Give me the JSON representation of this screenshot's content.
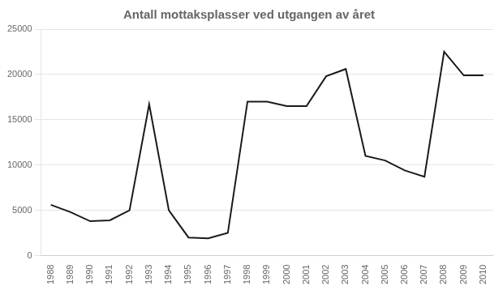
{
  "chart_data": {
    "type": "line",
    "title": "Antall mottaksplasser ved utgangen av året",
    "x": [
      1988,
      1989,
      1990,
      1991,
      1992,
      1993,
      1994,
      1995,
      1996,
      1997,
      1998,
      1999,
      2000,
      2001,
      2002,
      2003,
      2004,
      2005,
      2006,
      2007,
      2008,
      2009,
      2010
    ],
    "values": [
      5600,
      4800,
      3800,
      3900,
      5000,
      16700,
      5000,
      2000,
      1900,
      2500,
      17000,
      17000,
      16500,
      16500,
      19800,
      20600,
      11000,
      10500,
      9400,
      8700,
      22500,
      19900,
      19900
    ],
    "color": "#1a1a1a",
    "xlim": [
      1987.5,
      2010.5
    ],
    "xticks": [
      1988,
      1989,
      1990,
      1991,
      1992,
      1993,
      1994,
      1995,
      1996,
      1997,
      1998,
      1999,
      2000,
      2001,
      2002,
      2003,
      2004,
      2005,
      2006,
      2007,
      2008,
      2009,
      2010
    ],
    "ylim": [
      0,
      25000
    ],
    "yticks": [
      0,
      5000,
      10000,
      15000,
      20000,
      25000
    ],
    "grid": "y"
  }
}
